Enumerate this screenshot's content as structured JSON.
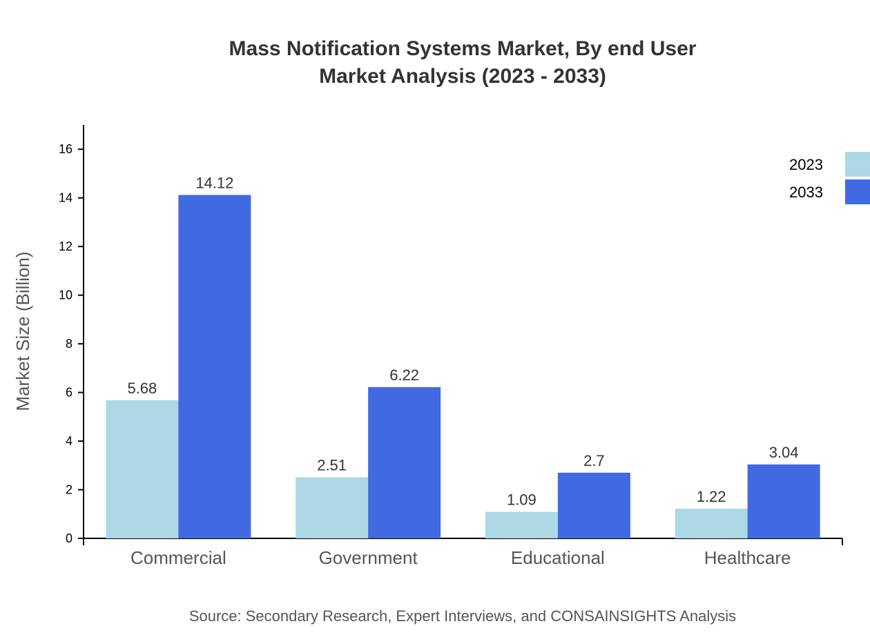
{
  "chart_data": {
    "type": "bar",
    "title": "Mass Notification Systems Market, By end User",
    "subtitle": "Market Analysis (2023 - 2033)",
    "xlabel": "",
    "ylabel": "Market Size (Billion)",
    "ylim": [
      0,
      17
    ],
    "yticks": [
      0,
      2,
      4,
      6,
      8,
      10,
      12,
      14,
      16
    ],
    "categories": [
      "Commercial",
      "Government",
      "Educational",
      "Healthcare"
    ],
    "series": [
      {
        "name": "2023",
        "values": [
          5.68,
          2.51,
          1.09,
          1.22
        ],
        "labels": [
          "5.68",
          "2.51",
          "1.09",
          "1.22"
        ],
        "color": "#add8e6"
      },
      {
        "name": "2033",
        "values": [
          14.12,
          6.22,
          2.7,
          3.04
        ],
        "labels": [
          "14.12",
          "6.22",
          "2.7",
          "3.04"
        ],
        "color": "#4169e1"
      }
    ],
    "legend_position": "top-right",
    "grid": false,
    "source": "Source: Secondary Research, Expert Interviews, and CONSAINSIGHTS Analysis"
  }
}
